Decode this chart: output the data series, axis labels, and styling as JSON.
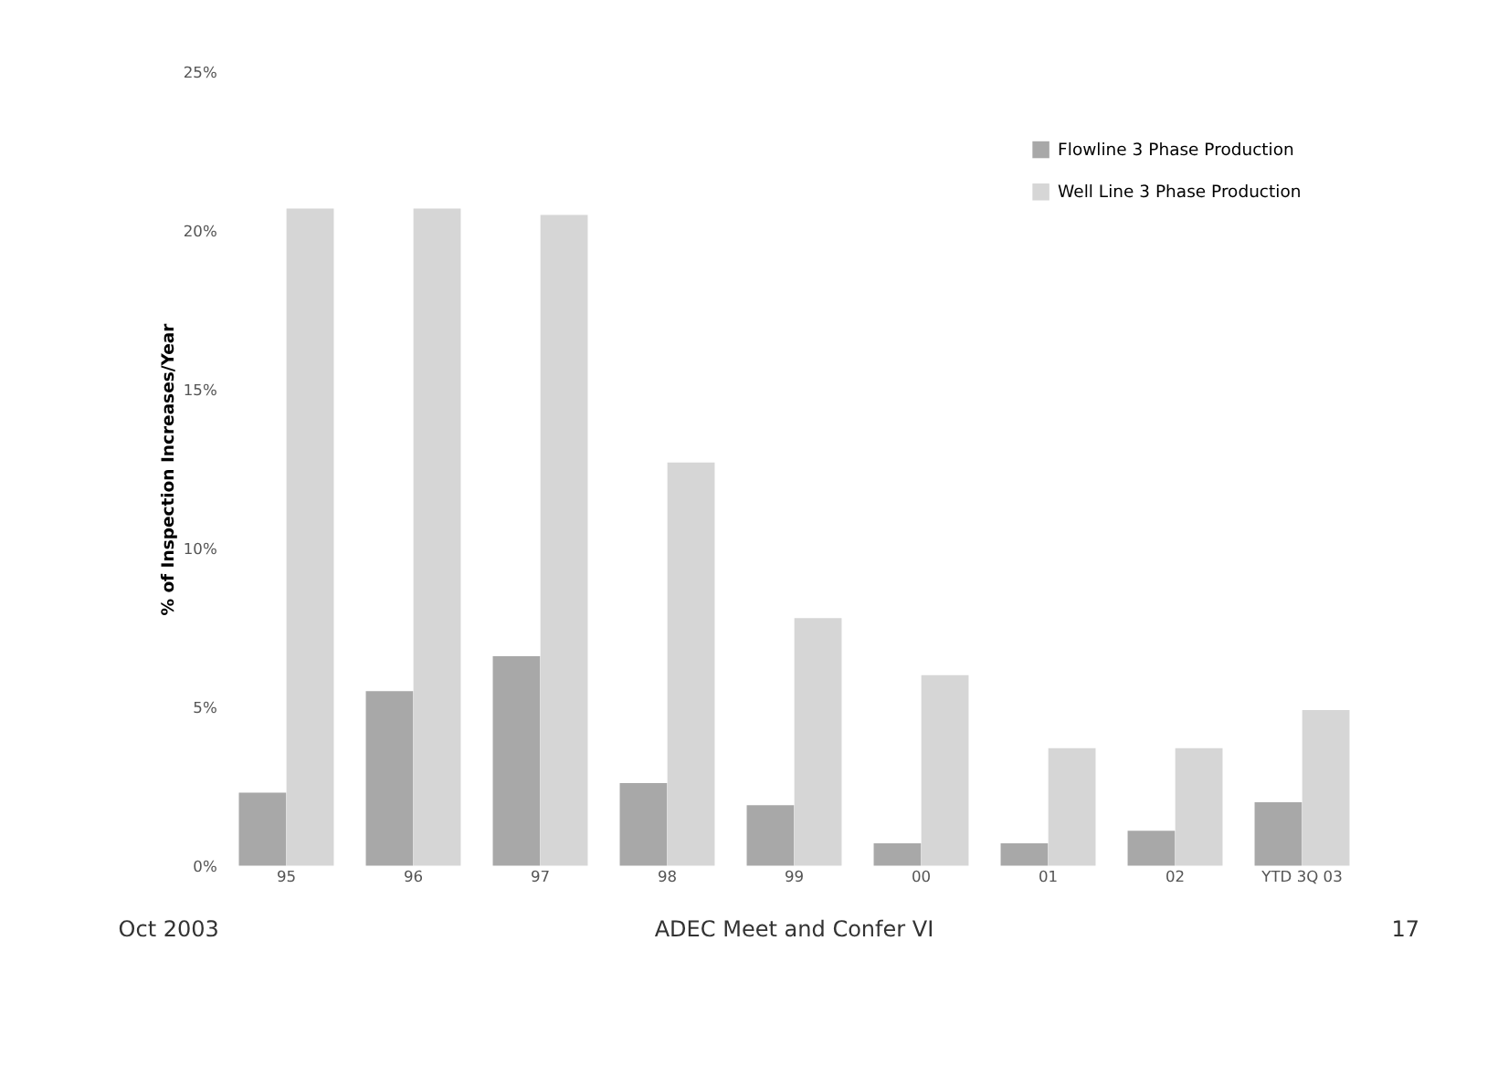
{
  "chart_data": {
    "type": "bar",
    "ylabel": "% of Inspection Increases/Year",
    "categories": [
      "95",
      "96",
      "97",
      "98",
      "99",
      "00",
      "01",
      "02",
      "YTD 3Q 03"
    ],
    "series": [
      {
        "name": "Flowline 3 Phase Production",
        "color": "#a8a8a8",
        "values": [
          2.3,
          5.5,
          6.6,
          2.6,
          1.9,
          0.7,
          0.7,
          1.1,
          2.0
        ]
      },
      {
        "name": "Well Line 3 Phase Production",
        "color": "#d6d6d6",
        "values": [
          20.7,
          20.7,
          20.5,
          12.7,
          7.8,
          6.0,
          3.7,
          3.7,
          4.9
        ]
      }
    ],
    "ylim": [
      0,
      25
    ],
    "yticks": [
      {
        "value": 0,
        "label": "0%"
      },
      {
        "value": 5,
        "label": "5%"
      },
      {
        "value": 10,
        "label": "10%"
      },
      {
        "value": 15,
        "label": "15%"
      },
      {
        "value": 20,
        "label": "20%"
      },
      {
        "value": 25,
        "label": "25%"
      }
    ],
    "grid": false,
    "legend": "top right",
    "annotations": [
      "Oct 2003",
      "ADEC Meet and Confer VI",
      "17"
    ]
  }
}
